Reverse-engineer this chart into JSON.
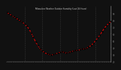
{
  "title": "Milwaukee Weather Outdoor Humidity (Last 24 Hours)",
  "background_color": "#111111",
  "plot_bg_color": "#111111",
  "title_color": "#cccccc",
  "line_color": "#ff0000",
  "line_style": "--",
  "marker": "o",
  "marker_color": "#000000",
  "marker_size": 1.2,
  "line_width": 0.7,
  "ylim": [
    20,
    100
  ],
  "yticks": [
    20,
    30,
    40,
    50,
    60,
    70,
    80,
    90,
    100
  ],
  "ytick_labels": [
    "20",
    "30",
    "40",
    "50",
    "60",
    "70",
    "80",
    "90",
    ""
  ],
  "grid_color": "#555555",
  "grid_style": ":",
  "humidity_values": [
    91,
    89,
    87,
    85,
    83,
    81,
    79,
    77,
    74,
    71,
    67,
    61,
    55,
    48,
    43,
    38,
    35,
    33,
    31,
    30,
    29,
    30,
    31,
    32,
    33,
    34,
    33,
    32,
    33,
    34,
    35,
    36,
    36,
    37,
    38,
    38,
    39,
    41,
    43,
    46,
    50,
    54,
    58,
    63,
    68,
    72,
    75,
    78
  ],
  "num_vertical_grids": 6,
  "spine_color": "#888888",
  "tick_color": "#888888"
}
